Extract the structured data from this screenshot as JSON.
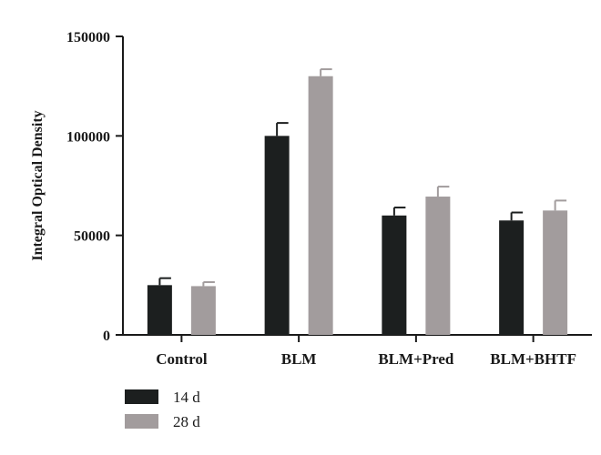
{
  "chart_data": {
    "type": "bar",
    "ylabel": "Integral Optical Density",
    "ylim": [
      0,
      150000
    ],
    "yticks": [
      0,
      50000,
      100000,
      150000
    ],
    "categories": [
      "Control",
      "BLM",
      "BLM+Pred",
      "BLM+BHTF"
    ],
    "series": [
      {
        "name": "14 d",
        "color": "#1c1f1f",
        "values": [
          25000,
          100000,
          60000,
          57500
        ],
        "errors": [
          3500,
          6500,
          4000,
          4000
        ]
      },
      {
        "name": "28 d",
        "color": "#a29c9d",
        "values": [
          24500,
          130000,
          69500,
          62500
        ],
        "errors": [
          2000,
          3500,
          5000,
          5000
        ]
      }
    ],
    "legend_position": "bottom-left",
    "grid": false
  }
}
